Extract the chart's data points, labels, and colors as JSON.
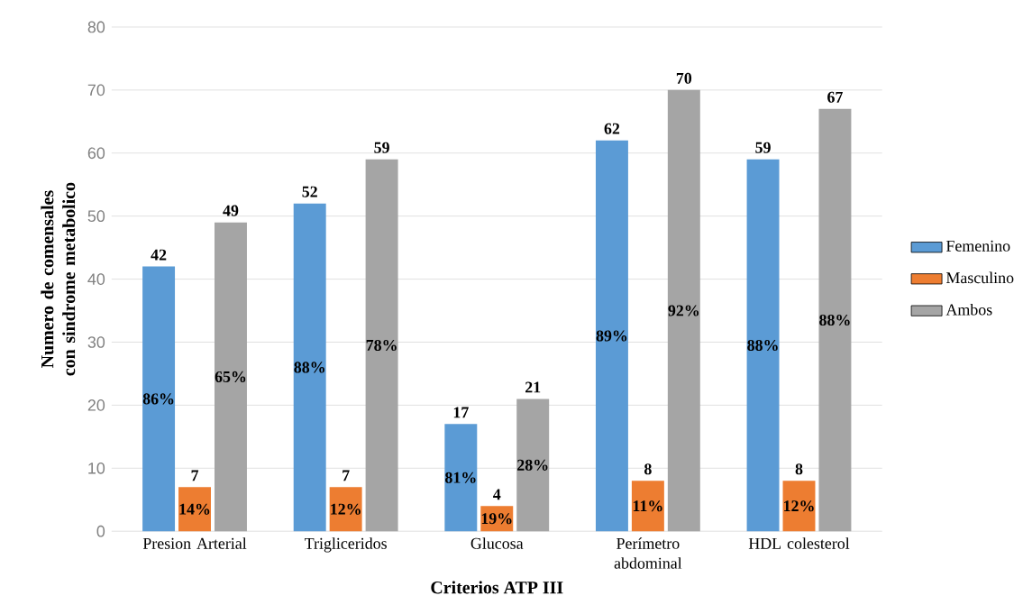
{
  "chart_data": {
    "type": "bar",
    "xlabel": "Criterios ATP III",
    "ylabel": "Numero de comensales con sindrome metabolico",
    "categories": [
      "Presion Arterial",
      "Trigliceridos",
      "Glucosa",
      "Perímetro abdominal",
      "HDL colesterol"
    ],
    "series": [
      {
        "name": "Femenino",
        "color": "#5b9bd5",
        "values": [
          42,
          52,
          17,
          62,
          59
        ]
      },
      {
        "name": "Masculino",
        "color": "#ed7d31",
        "values": [
          7,
          7,
          4,
          8,
          8
        ]
      },
      {
        "name": "Ambos",
        "color": "#a5a5a5",
        "values": [
          49,
          59,
          21,
          70,
          67
        ]
      }
    ],
    "annotations": [
      "86%",
      "88%",
      "81%",
      "89%",
      "88%",
      "14%",
      "12%",
      "19%",
      "11%",
      "12%",
      "65%",
      "78%",
      "28%",
      "92%",
      "88%"
    ],
    "ylim": [
      0,
      80
    ],
    "yticks": [
      0,
      10,
      20,
      30,
      40,
      50,
      60,
      70,
      80
    ],
    "grid": "y",
    "legend": "right",
    "data_labels": true
  }
}
